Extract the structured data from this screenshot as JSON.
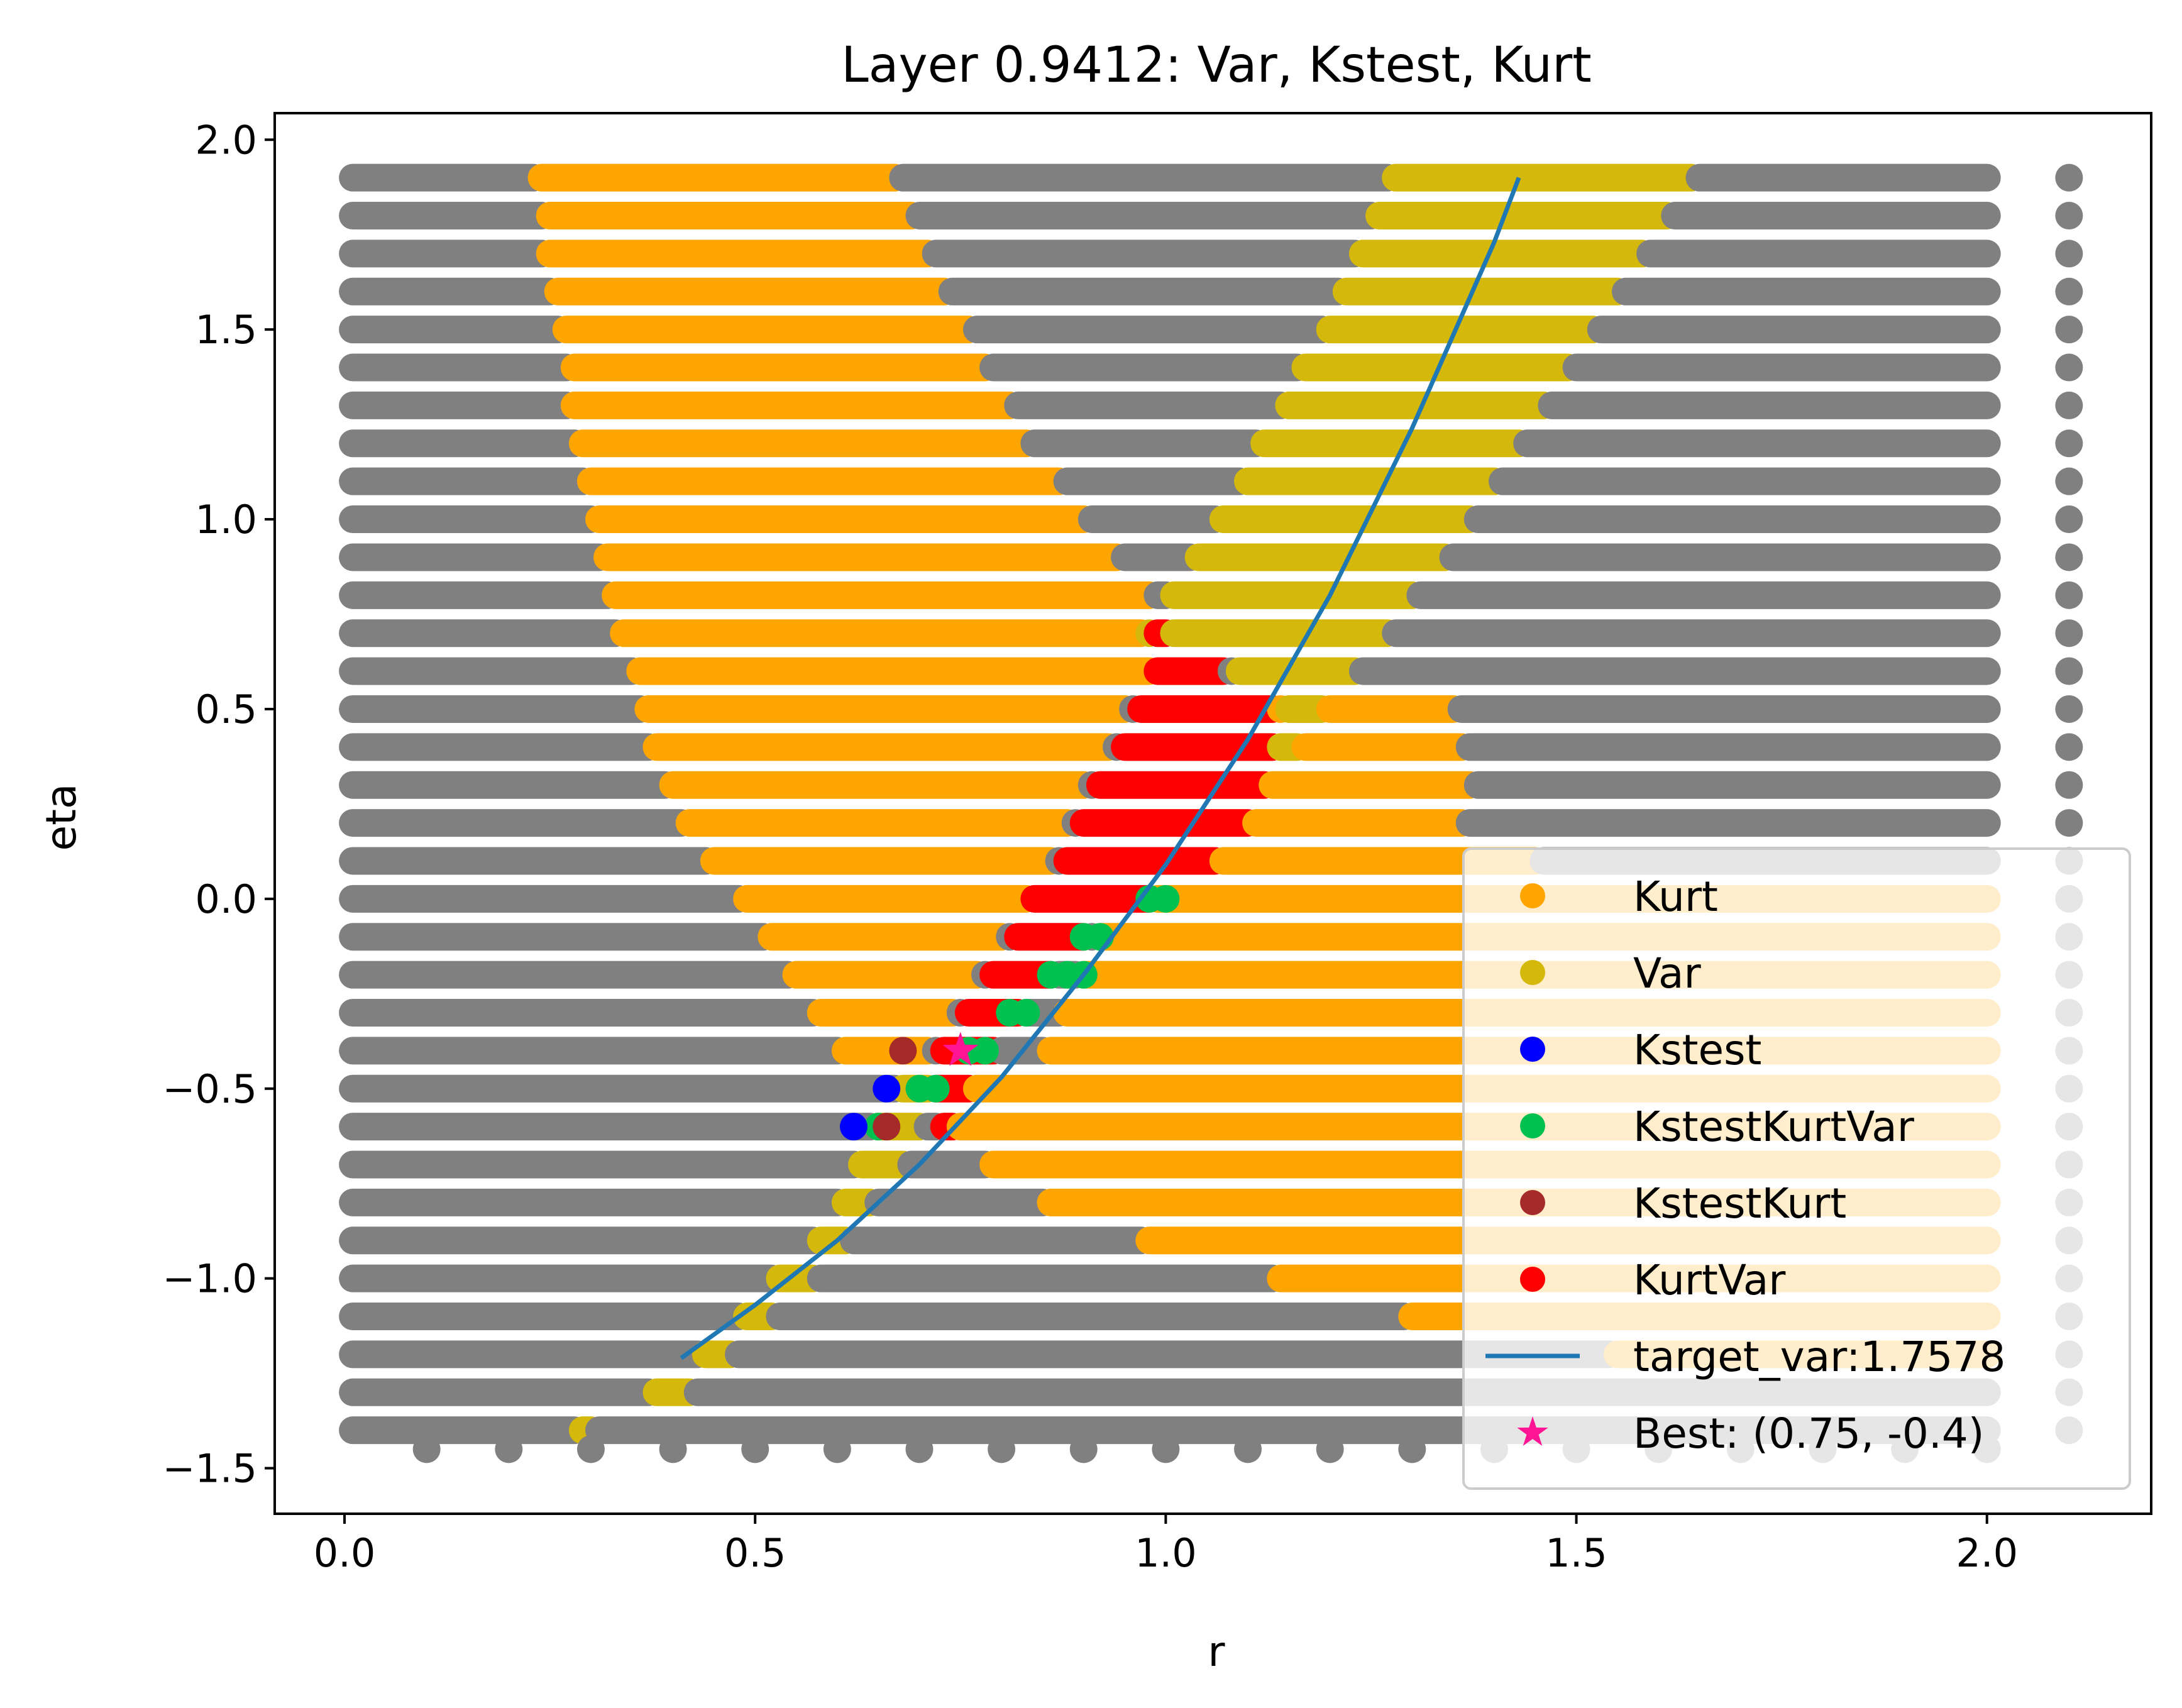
{
  "chart_data": {
    "type": "scatter",
    "title": "Layer 0.9412: Var, Kstest, Kurt",
    "xlabel": "r",
    "ylabel": "eta",
    "xlim": [
      -0.085,
      2.2
    ],
    "ylim": [
      -1.62,
      2.07
    ],
    "xticks": [
      0.0,
      0.5,
      1.0,
      1.5,
      2.0
    ],
    "xtick_labels": [
      "0.0",
      "0.5",
      "1.0",
      "1.5",
      "2.0"
    ],
    "yticks": [
      -1.5,
      -1.0,
      -0.5,
      0.0,
      0.5,
      1.0,
      1.5,
      2.0
    ],
    "ytick_labels": [
      "−1.5",
      "−1.0",
      "−0.5",
      "0.0",
      "0.5",
      "1.0",
      "1.5",
      "2.0"
    ],
    "grid": false,
    "legend_position": "lower-right",
    "grid_points": {
      "r_min": 0.01,
      "r_max": 2.0,
      "r_step": 0.01,
      "eta_min": -1.4,
      "eta_max": 1.9,
      "eta_step": 0.1,
      "extra_r_column": 2.1,
      "extra_eta_row": -1.45,
      "extra_eta_row_r_values": [
        0.1,
        0.2,
        0.3,
        0.4,
        0.5,
        0.6,
        0.7,
        0.8,
        0.9,
        1.0,
        1.1,
        1.2,
        1.3,
        1.4,
        1.5,
        1.6,
        1.7,
        1.8,
        1.9,
        2.0
      ]
    },
    "series": [
      {
        "name": "Kurt",
        "color": "#ffa500",
        "marker": "circle",
        "region_rows": [
          [
            1.9,
            0.24,
            0.67
          ],
          [
            1.8,
            0.25,
            0.69
          ],
          [
            1.7,
            0.25,
            0.71
          ],
          [
            1.6,
            0.26,
            0.73
          ],
          [
            1.5,
            0.27,
            0.76
          ],
          [
            1.4,
            0.28,
            0.78
          ],
          [
            1.3,
            0.28,
            0.81
          ],
          [
            1.2,
            0.29,
            0.83
          ],
          [
            1.1,
            0.3,
            0.87
          ],
          [
            1.0,
            0.31,
            0.9
          ],
          [
            0.9,
            0.32,
            0.94
          ],
          [
            0.8,
            0.33,
            0.98
          ],
          [
            0.7,
            0.34,
            1.0
          ],
          [
            0.6,
            0.36,
            0.98
          ],
          [
            0.5,
            0.37,
            0.95
          ],
          [
            0.4,
            0.38,
            0.93
          ],
          [
            0.3,
            0.4,
            0.9
          ],
          [
            0.2,
            0.42,
            0.88
          ],
          [
            0.1,
            0.45,
            0.86
          ],
          [
            0.0,
            0.49,
            0.83
          ],
          [
            -0.1,
            0.52,
            0.8
          ],
          [
            -0.2,
            0.55,
            0.77
          ],
          [
            -0.3,
            0.58,
            0.74
          ],
          [
            -0.4,
            0.61,
            0.71
          ],
          [
            -0.5,
            0.74,
            0.84
          ],
          [
            -0.6,
            0.75,
            0.86
          ]
        ],
        "right_rows": [
          [
            0.6,
            1.15,
            1.2
          ],
          [
            0.5,
            1.02,
            1.35
          ],
          [
            0.4,
            1.0,
            1.36
          ],
          [
            0.3,
            0.99,
            1.37
          ],
          [
            0.2,
            0.98,
            1.36
          ],
          [
            0.1,
            0.95,
            1.45
          ],
          [
            0.0,
            0.95,
            2.0
          ],
          [
            -0.1,
            0.92,
            2.0
          ],
          [
            -0.2,
            0.9,
            2.0
          ],
          [
            -0.3,
            0.88,
            2.0
          ],
          [
            -0.4,
            0.86,
            2.0
          ],
          [
            -0.5,
            0.84,
            2.0
          ],
          [
            -0.6,
            0.81,
            2.0
          ],
          [
            -0.7,
            0.79,
            2.0
          ],
          [
            -0.8,
            0.86,
            2.0
          ],
          [
            -0.9,
            0.98,
            2.0
          ],
          [
            -1.0,
            1.14,
            2.0
          ],
          [
            -1.1,
            1.3,
            2.0
          ],
          [
            -1.2,
            1.55,
            2.0
          ]
        ]
      },
      {
        "name": "Var",
        "color": "#d4b80b",
        "marker": "circle",
        "region_rows": [
          [
            1.9,
            1.28,
            1.64
          ],
          [
            1.8,
            1.26,
            1.61
          ],
          [
            1.7,
            1.24,
            1.58
          ],
          [
            1.6,
            1.22,
            1.55
          ],
          [
            1.5,
            1.2,
            1.52
          ],
          [
            1.4,
            1.17,
            1.49
          ],
          [
            1.3,
            1.15,
            1.46
          ],
          [
            1.2,
            1.12,
            1.43
          ],
          [
            1.1,
            1.1,
            1.4
          ],
          [
            1.0,
            1.07,
            1.37
          ],
          [
            0.9,
            1.04,
            1.34
          ],
          [
            0.8,
            1.01,
            1.3
          ],
          [
            0.7,
            0.98,
            1.27
          ],
          [
            0.6,
            1.09,
            1.23
          ],
          [
            0.5,
            1.15,
            1.19
          ],
          [
            0.4,
            1.14,
            1.16
          ],
          [
            -0.5,
            0.68,
            0.72
          ],
          [
            -0.6,
            0.65,
            0.7
          ],
          [
            -0.7,
            0.63,
            0.68
          ],
          [
            -0.8,
            0.61,
            0.64
          ],
          [
            -0.9,
            0.58,
            0.61
          ],
          [
            -1.0,
            0.53,
            0.57
          ],
          [
            -1.1,
            0.49,
            0.52
          ],
          [
            -1.2,
            0.44,
            0.47
          ],
          [
            -1.3,
            0.38,
            0.42
          ],
          [
            -1.4,
            0.29,
            0.3
          ]
        ]
      },
      {
        "name": "Kstest",
        "color": "#0000ff",
        "marker": "circle",
        "points": [
          [
            0.62,
            -0.6
          ],
          [
            0.66,
            -0.5
          ]
        ]
      },
      {
        "name": "KstestKurtVar",
        "color": "#00c050",
        "marker": "circle",
        "points": [
          [
            0.98,
            0.0
          ],
          [
            1.0,
            0.0
          ],
          [
            0.9,
            -0.1
          ],
          [
            0.92,
            -0.1
          ],
          [
            0.86,
            -0.2
          ],
          [
            0.88,
            -0.2
          ],
          [
            0.9,
            -0.2
          ],
          [
            0.81,
            -0.3
          ],
          [
            0.83,
            -0.3
          ],
          [
            0.78,
            -0.4
          ],
          [
            0.76,
            -0.4
          ],
          [
            0.7,
            -0.5
          ],
          [
            0.72,
            -0.5
          ],
          [
            0.65,
            -0.6
          ]
        ]
      },
      {
        "name": "KstestKurt",
        "color": "#a52a2a",
        "marker": "circle",
        "points": [
          [
            0.68,
            -0.4
          ],
          [
            0.66,
            -0.6
          ]
        ]
      },
      {
        "name": "KurtVar",
        "color": "#ff0000",
        "marker": "circle",
        "region_rows": [
          [
            0.7,
            0.99,
            1.0
          ],
          [
            0.6,
            0.99,
            1.07
          ],
          [
            0.5,
            0.97,
            1.13
          ],
          [
            0.4,
            0.95,
            1.13
          ],
          [
            0.3,
            0.92,
            1.12
          ],
          [
            0.2,
            0.9,
            1.1
          ],
          [
            0.1,
            0.88,
            1.06
          ],
          [
            0.0,
            0.84,
            0.98
          ],
          [
            -0.1,
            0.82,
            0.9
          ],
          [
            -0.2,
            0.79,
            0.86
          ],
          [
            -0.3,
            0.76,
            0.82
          ],
          [
            -0.4,
            0.73,
            0.79
          ],
          [
            -0.5,
            0.72,
            0.76
          ],
          [
            -0.6,
            0.73,
            0.74
          ]
        ]
      },
      {
        "name": "target_var:1.7578",
        "color": "#1f77b4",
        "marker": "line",
        "x": [
          0.41,
          0.5,
          0.6,
          0.7,
          0.8,
          0.9,
          1.0,
          1.1,
          1.2,
          1.3,
          1.4,
          1.43
        ],
        "y": [
          -1.21,
          -1.07,
          -0.9,
          -0.7,
          -0.47,
          -0.2,
          0.09,
          0.42,
          0.8,
          1.24,
          1.73,
          1.9
        ]
      },
      {
        "name": "Best: (0.75, -0.4)",
        "color": "#ff1493",
        "marker": "star",
        "x": [
          0.75
        ],
        "y": [
          -0.4
        ]
      }
    ],
    "colors": {
      "background_point": "#808080",
      "kurt": "#ffa500",
      "var": "#d4b80b",
      "kstest": "#0000ff",
      "kstestkurtvar": "#00c050",
      "kstestkurt": "#a52a2a",
      "kurtvar": "#ff0000",
      "target_line": "#1f77b4",
      "best_star": "#ff1493",
      "legend_bg": "#ffffff",
      "legend_edge": "#cccccc"
    }
  }
}
